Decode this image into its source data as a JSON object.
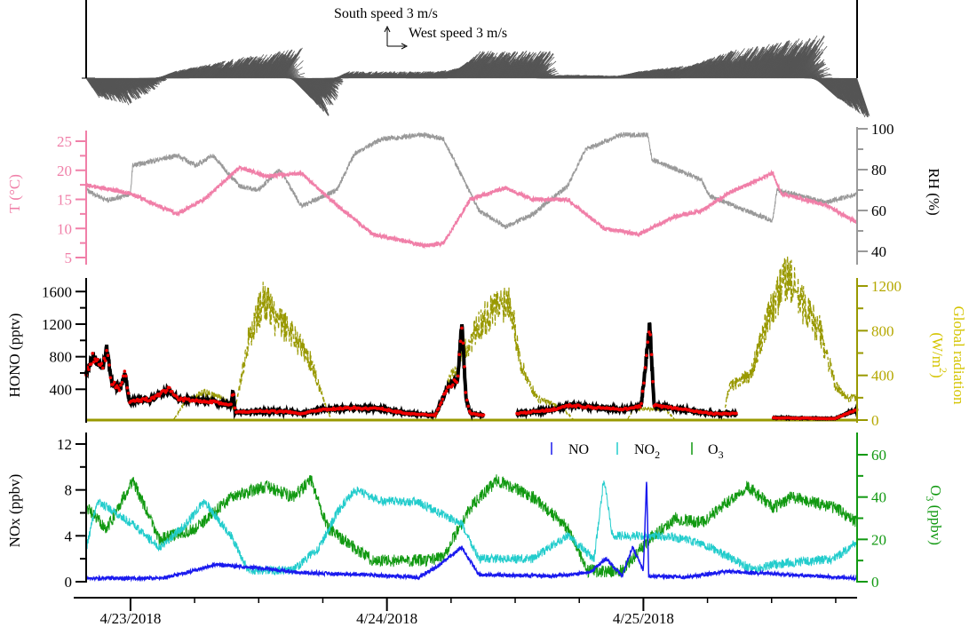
{
  "chart_data": {
    "type": "line",
    "x_unit": "hours since 4/23/2018 00:00",
    "xlim": [
      -4.15,
      68
    ],
    "x_ticks": [
      {
        "h": 0,
        "label": "4/23/2018"
      },
      {
        "h": 24,
        "label": "4/24/2018"
      },
      {
        "h": 48,
        "label": "4/25/2018"
      }
    ],
    "wind": {
      "south_label": "South speed 3 m/s",
      "west_label": "West speed 3 m/s",
      "ref_speed": 3,
      "v": [
        [
          -4.15,
          -3
        ],
        [
          -1.4,
          -4
        ],
        [
          1.5,
          -1
        ],
        [
          2.7,
          1
        ],
        [
          8.5,
          3
        ],
        [
          14.3,
          4.5
        ],
        [
          15.1,
          -3
        ],
        [
          16.8,
          -6
        ],
        [
          18.4,
          -1
        ],
        [
          19.3,
          1
        ],
        [
          27.6,
          1
        ],
        [
          29.3,
          1.5
        ],
        [
          30.9,
          4
        ],
        [
          37.6,
          4
        ],
        [
          38.4,
          0.5
        ],
        [
          44.1,
          0.3
        ],
        [
          45.8,
          1
        ],
        [
          50.8,
          2
        ],
        [
          54.1,
          4
        ],
        [
          62.4,
          6.5
        ],
        [
          64.1,
          -3
        ],
        [
          67.6,
          -6
        ],
        [
          68,
          -6
        ]
      ],
      "u": [
        [
          -4.15,
          2
        ],
        [
          16.8,
          3
        ],
        [
          20.9,
          1
        ],
        [
          25,
          1
        ],
        [
          30.9,
          3
        ],
        [
          37.6,
          3
        ],
        [
          54.1,
          3
        ],
        [
          62.4,
          4
        ],
        [
          68,
          2
        ]
      ]
    },
    "temperature": {
      "label": "T (°C)",
      "ylim": [
        3,
        27
      ],
      "ticks": [
        5,
        10,
        15,
        20,
        25
      ],
      "color": "#f07fa8",
      "points": [
        [
          -4.15,
          17.5
        ],
        [
          0,
          16
        ],
        [
          4.4,
          12.5
        ],
        [
          6.9,
          15
        ],
        [
          10.2,
          20.5
        ],
        [
          12.7,
          19
        ],
        [
          16,
          19.5
        ],
        [
          19.3,
          14
        ],
        [
          22.7,
          9
        ],
        [
          27.6,
          7
        ],
        [
          29.3,
          7.5
        ],
        [
          31.8,
          15
        ],
        [
          35.1,
          17
        ],
        [
          37.6,
          15
        ],
        [
          40.9,
          15
        ],
        [
          44.3,
          10
        ],
        [
          47.6,
          9
        ],
        [
          50.9,
          12
        ],
        [
          53.4,
          13
        ],
        [
          55.9,
          16
        ],
        [
          60.1,
          19.5
        ],
        [
          60.9,
          16
        ],
        [
          65.1,
          14
        ],
        [
          68,
          11
        ]
      ]
    },
    "rh": {
      "label": "RH (%)",
      "ylim": [
        33,
        100
      ],
      "ticks": [
        40,
        60,
        80,
        100
      ],
      "color": "#999999",
      "points": [
        [
          -4.15,
          70
        ],
        [
          -2.2,
          65
        ],
        [
          0,
          68
        ],
        [
          0.2,
          82
        ],
        [
          4.4,
          87
        ],
        [
          6.1,
          82
        ],
        [
          7.7,
          87
        ],
        [
          10.2,
          72
        ],
        [
          11.9,
          70
        ],
        [
          14,
          80
        ],
        [
          16,
          62
        ],
        [
          19.3,
          70
        ],
        [
          21,
          88
        ],
        [
          23.5,
          95
        ],
        [
          27.6,
          97
        ],
        [
          29.3,
          95
        ],
        [
          32.6,
          60
        ],
        [
          35.1,
          52
        ],
        [
          37.6,
          58
        ],
        [
          40.9,
          72
        ],
        [
          42.6,
          90
        ],
        [
          45.9,
          97
        ],
        [
          48.4,
          97
        ],
        [
          48.8,
          85
        ],
        [
          53.4,
          75
        ],
        [
          54.2,
          67
        ],
        [
          57.6,
          60
        ],
        [
          60.1,
          55
        ],
        [
          60.5,
          70
        ],
        [
          65.1,
          64
        ],
        [
          68,
          68
        ]
      ]
    },
    "hono": {
      "label": "HONO (pptv)",
      "ylim": [
        0,
        1750
      ],
      "ticks": [
        400,
        800,
        1200,
        1600
      ],
      "points": [
        [
          -4.15,
          600
        ],
        [
          -3.5,
          800
        ],
        [
          -2.6,
          650
        ],
        [
          -2.2,
          900
        ],
        [
          -1.8,
          500
        ],
        [
          -1,
          400
        ],
        [
          -0.5,
          600
        ],
        [
          -0.1,
          250
        ],
        [
          2,
          280
        ],
        [
          3.6,
          400
        ],
        [
          4.4,
          280
        ],
        [
          7.8,
          250
        ],
        [
          9.4,
          200
        ],
        [
          9.6,
          400
        ],
        [
          9.8,
          120
        ],
        [
          12.7,
          130
        ],
        [
          15.2,
          120
        ],
        [
          16,
          100
        ],
        [
          17.7,
          150
        ],
        [
          21,
          170
        ],
        [
          23.5,
          160
        ],
        [
          26,
          100
        ],
        [
          28.5,
          80
        ],
        [
          29.8,
          450
        ],
        [
          30.6,
          500
        ],
        [
          31,
          1200
        ],
        [
          31.4,
          300
        ],
        [
          31.8,
          100
        ],
        [
          33.1,
          80
        ],
        [
          33.2,
          null
        ],
        [
          36,
          null
        ],
        [
          36.1,
          100
        ],
        [
          39.5,
          150
        ],
        [
          41.1,
          200
        ],
        [
          46.1,
          150
        ],
        [
          47.8,
          200
        ],
        [
          48.6,
          1200
        ],
        [
          49,
          200
        ],
        [
          51.9,
          150
        ],
        [
          54.4,
          100
        ],
        [
          56.8,
          100
        ],
        [
          56.9,
          null
        ],
        [
          60,
          null
        ],
        [
          60.1,
          50
        ],
        [
          65.9,
          40
        ],
        [
          68,
          150
        ]
      ]
    },
    "radiation": {
      "label": "Global radiation",
      "unit": "(W/m",
      "unit_sup": "2",
      "unit_close": ")",
      "ylim": [
        0,
        1380
      ],
      "ticks": [
        0,
        400,
        800,
        1200
      ],
      "color": "#999900",
      "points": [
        [
          -4.15,
          0
        ],
        [
          4,
          0
        ],
        [
          5,
          150
        ],
        [
          7,
          250
        ],
        [
          8.5,
          200
        ],
        [
          9.8,
          100
        ],
        [
          11,
          700
        ],
        [
          12.5,
          1100
        ],
        [
          13.5,
          900
        ],
        [
          15,
          800
        ],
        [
          17,
          500
        ],
        [
          18,
          200
        ],
        [
          18.8,
          0
        ],
        [
          28.5,
          0
        ],
        [
          30,
          400
        ],
        [
          33,
          900
        ],
        [
          35.5,
          1100
        ],
        [
          36.5,
          500
        ],
        [
          38,
          200
        ],
        [
          40.5,
          100
        ],
        [
          41.5,
          0
        ],
        [
          46.5,
          0
        ],
        [
          47,
          100
        ],
        [
          50,
          100
        ],
        [
          51,
          0
        ],
        [
          55.5,
          0
        ],
        [
          56,
          300
        ],
        [
          58,
          400
        ],
        [
          60,
          1000
        ],
        [
          61.5,
          1300
        ],
        [
          62.5,
          1100
        ],
        [
          64.5,
          800
        ],
        [
          66,
          300
        ],
        [
          67,
          200
        ],
        [
          68,
          200
        ]
      ]
    },
    "nox": {
      "label": "NOx (ppbv)",
      "ylim": [
        0,
        13
      ],
      "ticks": [
        0,
        4,
        8,
        12
      ]
    },
    "no": {
      "label": "NO",
      "color": "#1a1aee",
      "points": [
        [
          -4.15,
          0.3
        ],
        [
          3,
          0.3
        ],
        [
          6,
          1
        ],
        [
          8,
          1.5
        ],
        [
          12,
          1.2
        ],
        [
          16,
          0.8
        ],
        [
          22,
          0.6
        ],
        [
          27,
          0.4
        ],
        [
          29,
          1.5
        ],
        [
          31,
          3
        ],
        [
          32.6,
          0.6
        ],
        [
          40,
          0.5
        ],
        [
          43,
          0.8
        ],
        [
          44.5,
          2
        ],
        [
          46,
          0.5
        ],
        [
          47,
          3
        ],
        [
          48,
          1
        ],
        [
          48.3,
          9
        ],
        [
          48.5,
          0.5
        ],
        [
          52,
          0.4
        ],
        [
          56,
          0.9
        ],
        [
          62,
          0.6
        ],
        [
          68,
          0.3
        ]
      ]
    },
    "no2": {
      "label": "NO",
      "label_sub": "2",
      "color": "#22cccc",
      "points": [
        [
          -4.15,
          3
        ],
        [
          -3.1,
          7
        ],
        [
          0.2,
          5
        ],
        [
          2.7,
          3
        ],
        [
          5.2,
          5
        ],
        [
          6.9,
          7
        ],
        [
          9.4,
          4
        ],
        [
          11,
          1
        ],
        [
          15.2,
          1
        ],
        [
          17.7,
          3
        ],
        [
          19.3,
          6
        ],
        [
          21,
          8
        ],
        [
          23.5,
          7
        ],
        [
          26.8,
          7
        ],
        [
          31,
          5
        ],
        [
          32.6,
          2
        ],
        [
          37.6,
          2
        ],
        [
          40.9,
          4
        ],
        [
          43.4,
          2
        ],
        [
          44.3,
          9
        ],
        [
          45.1,
          4
        ],
        [
          47.6,
          4
        ],
        [
          50.1,
          4
        ],
        [
          52.6,
          3.5
        ],
        [
          54.3,
          3
        ],
        [
          58.4,
          1
        ],
        [
          60.1,
          1.5
        ],
        [
          65.9,
          2
        ],
        [
          68,
          3.5
        ]
      ]
    },
    "o3": {
      "label": "O",
      "label_sub": "3",
      "axis_label": "(ppbv)",
      "ylim": [
        0,
        70
      ],
      "ticks": [
        0,
        20,
        40,
        60
      ],
      "color": "#119911",
      "points": [
        [
          -4.15,
          35
        ],
        [
          -2.2,
          25
        ],
        [
          0.2,
          48
        ],
        [
          2.7,
          20
        ],
        [
          6.1,
          25
        ],
        [
          9.4,
          40
        ],
        [
          12.7,
          45
        ],
        [
          15.2,
          40
        ],
        [
          16.9,
          48
        ],
        [
          18.5,
          25
        ],
        [
          22.7,
          10
        ],
        [
          27.7,
          10
        ],
        [
          29.3,
          12
        ],
        [
          31.8,
          35
        ],
        [
          34.3,
          48
        ],
        [
          37.7,
          40
        ],
        [
          41,
          25
        ],
        [
          42.7,
          5
        ],
        [
          46,
          5
        ],
        [
          48.5,
          20
        ],
        [
          51,
          30
        ],
        [
          53.5,
          28
        ],
        [
          57.7,
          45
        ],
        [
          60.2,
          35
        ],
        [
          61.8,
          40
        ],
        [
          66,
          35
        ],
        [
          68,
          28
        ]
      ]
    }
  }
}
